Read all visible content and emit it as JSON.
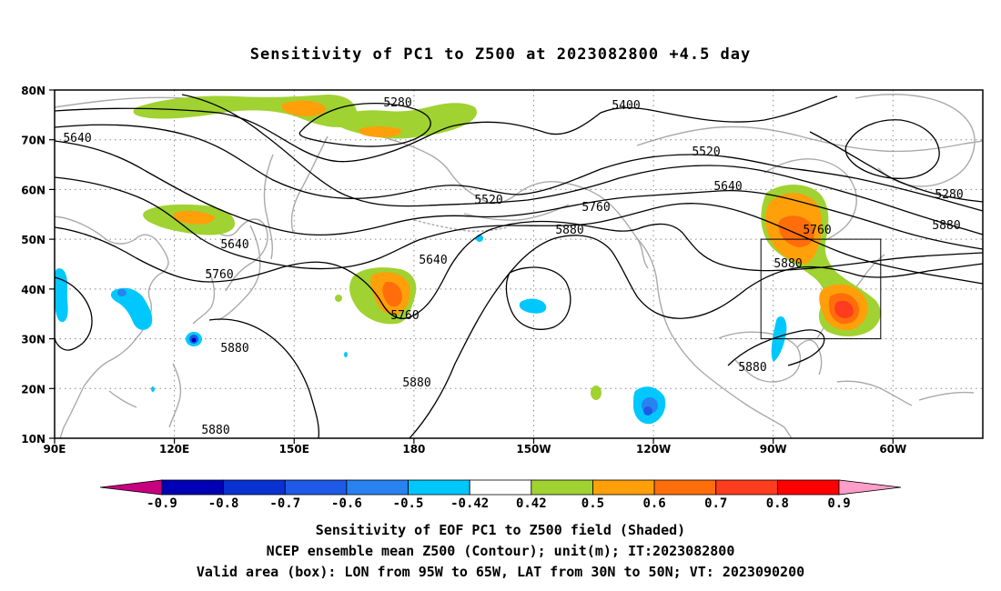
{
  "title": "Sensitivity of PC1 to Z500 at 2023082800 +4.5 day",
  "lat_labels": [
    "80N",
    "70N",
    "60N",
    "50N",
    "40N",
    "30N",
    "20N",
    "10N"
  ],
  "lon_labels": [
    "90E",
    "120E",
    "150E",
    "180",
    "150W",
    "120W",
    "90W",
    "60W"
  ],
  "contour_labels": [
    "5280",
    "5400",
    "5640",
    "5520",
    "5520",
    "5640",
    "5280",
    "5760",
    "5760",
    "5880",
    "5640",
    "5640",
    "5760",
    "5880",
    "5760",
    "5880",
    "5880",
    "5880",
    "5880",
    "5880"
  ],
  "colorbar": {
    "labels": [
      "-0.9",
      "-0.8",
      "-0.7",
      "-0.6",
      "-0.5",
      "-0.42",
      "0.42",
      "0.5",
      "0.6",
      "0.7",
      "0.8",
      "0.9"
    ],
    "colors": [
      "#c8007f",
      "#0000b4",
      "#0a32d2",
      "#1e5ae6",
      "#2882f0",
      "#00c8ff",
      "#ffffff",
      "#a0d232",
      "#ffa00a",
      "#ff6e0a",
      "#ff3c1e",
      "#ff0000",
      "#ff9ec8"
    ]
  },
  "captions": {
    "line1": "Sensitivity of EOF PC1 to Z500 field (Shaded)",
    "line2": "NCEP ensemble mean Z500 (Contour); unit(m); IT:2023082800",
    "line3": "Valid area (box): LON from 95W to 65W, LAT from 30N to 50N; VT: 2023090200"
  }
}
